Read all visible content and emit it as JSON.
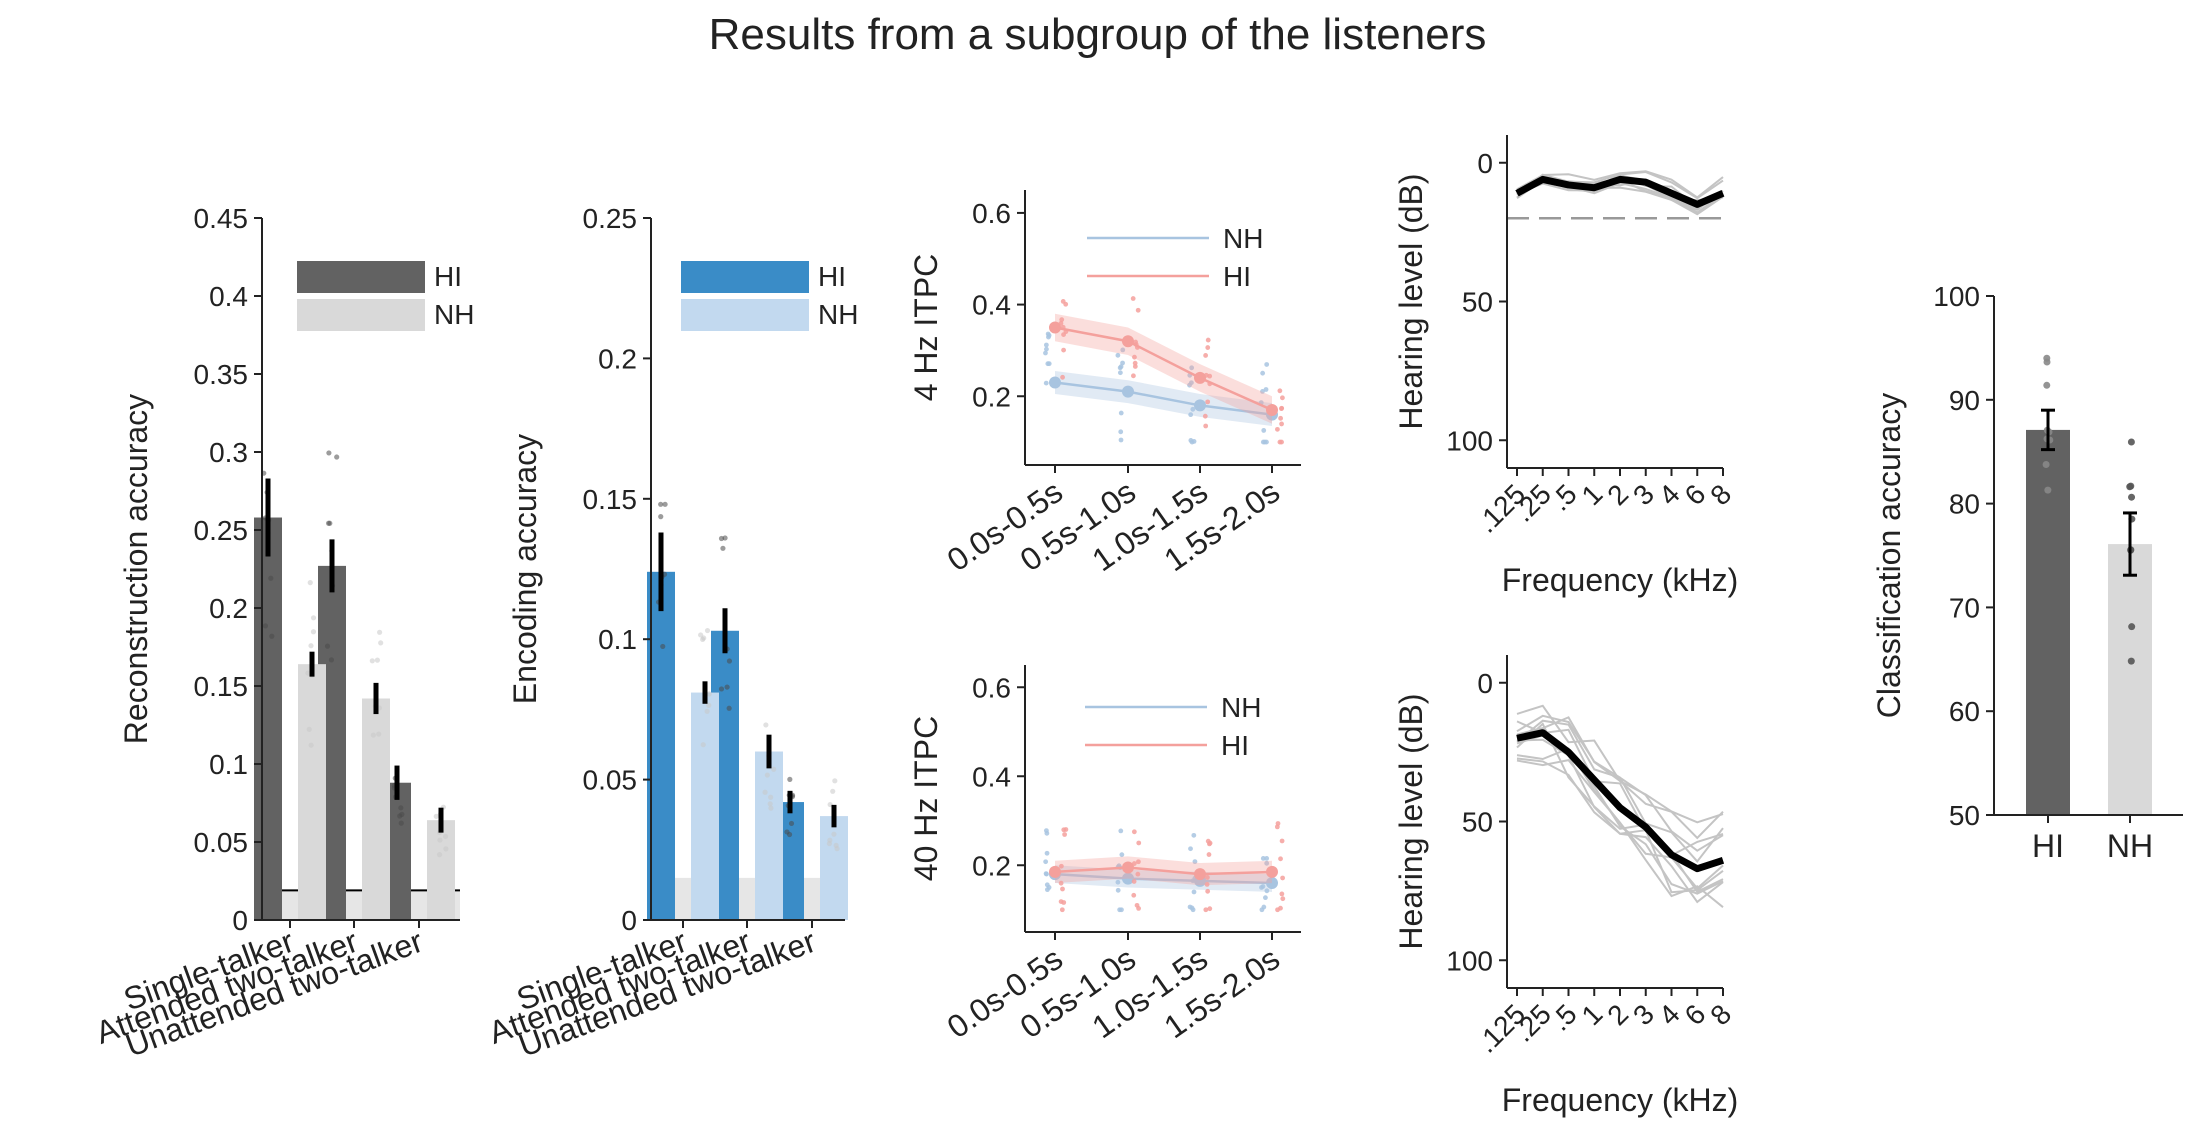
{
  "title": "Results from a subgroup of the listeners",
  "colors": {
    "hi_gray": "#626262",
    "nh_gray": "#d9d9d9",
    "hi_blue": "#3a8cc7",
    "nh_blue": "#c2d9ef",
    "itpc_nh": "#a8c4e0",
    "itpc_hi": "#f4a09c",
    "errorbar": "#000000",
    "chance": "#e6e6e6"
  },
  "chart_data": [
    {
      "type": "bar",
      "categories": [
        "Single-talker",
        "Attended two-talker",
        "Unattended two-talker"
      ],
      "ylabel": "Reconstruction accuracy",
      "ylim": [
        0,
        0.45
      ],
      "yticks": [
        "0",
        "0.05",
        "0.1",
        "0.15",
        "0.2",
        "0.25",
        "0.3",
        "0.35",
        "0.4",
        "0.45"
      ],
      "legend": [
        "HI",
        "NH"
      ],
      "legend_position": "top-right",
      "chance_level": 0.019,
      "series": [
        {
          "name": "HI",
          "values": [
            0.258,
            0.227,
            0.088
          ],
          "err": [
            0.025,
            0.017,
            0.011
          ]
        },
        {
          "name": "NH",
          "values": [
            0.164,
            0.142,
            0.064
          ],
          "err": [
            0.008,
            0.01,
            0.008
          ]
        }
      ]
    },
    {
      "type": "bar",
      "categories": [
        "Single-talker",
        "Attended two-talker",
        "Unattended two-talker"
      ],
      "ylabel": "Encoding accuracy",
      "ylim": [
        0,
        0.25
      ],
      "yticks": [
        "0",
        "0.05",
        "0.1",
        "0.15",
        "0.2",
        "0.25"
      ],
      "legend": [
        "HI",
        "NH"
      ],
      "legend_position": "top-right",
      "chance_level": 0.015,
      "series": [
        {
          "name": "HI",
          "values": [
            0.124,
            0.103,
            0.042
          ],
          "err": [
            0.014,
            0.008,
            0.004
          ]
        },
        {
          "name": "NH",
          "values": [
            0.081,
            0.06,
            0.037
          ],
          "err": [
            0.004,
            0.006,
            0.004
          ]
        }
      ]
    },
    {
      "type": "line",
      "categories": [
        "0.0s-0.5s",
        "0.5s-1.0s",
        "1.0s-1.5s",
        "1.5s-2.0s"
      ],
      "ylabel": "4 Hz ITPC",
      "ylim": [
        0.05,
        0.65
      ],
      "yticks": [
        "0.2",
        "0.4",
        "0.6"
      ],
      "legend": [
        "NH",
        "HI"
      ],
      "legend_position": "top-right",
      "series": [
        {
          "name": "NH",
          "values": [
            0.23,
            0.21,
            0.18,
            0.16
          ],
          "ci": 0.025
        },
        {
          "name": "HI",
          "values": [
            0.35,
            0.32,
            0.24,
            0.17
          ],
          "ci": 0.03
        }
      ]
    },
    {
      "type": "line",
      "categories": [
        "0.0s-0.5s",
        "0.5s-1.0s",
        "1.0s-1.5s",
        "1.5s-2.0s"
      ],
      "ylabel": "40 Hz ITPC",
      "ylim": [
        0.05,
        0.65
      ],
      "yticks": [
        "0.2",
        "0.4",
        "0.6"
      ],
      "legend": [
        "NH",
        "HI"
      ],
      "legend_position": "top-right",
      "series": [
        {
          "name": "NH",
          "values": [
            0.18,
            0.17,
            0.165,
            0.16
          ],
          "ci": 0.02
        },
        {
          "name": "HI",
          "values": [
            0.185,
            0.195,
            0.18,
            0.185
          ],
          "ci": 0.025
        }
      ]
    },
    {
      "type": "line",
      "xlabel": "Frequency (kHz)",
      "ylabel": "Hearing level (dB)",
      "x": [
        0.125,
        0.25,
        0.5,
        1,
        2,
        3,
        4,
        6,
        8
      ],
      "xticks": [
        ".125",
        ".25",
        ".5",
        "1",
        "2",
        "3",
        "4",
        "6",
        "8"
      ],
      "ylim": [
        110,
        -10
      ],
      "yticks": [
        "0",
        "50",
        "100"
      ],
      "reference_level": 20,
      "mean": [
        11,
        6,
        8,
        9,
        6,
        7,
        11,
        15,
        11
      ]
    },
    {
      "type": "line",
      "xlabel": "Frequency (kHz)",
      "ylabel": "Hearing level (dB)",
      "x": [
        0.125,
        0.25,
        0.5,
        1,
        2,
        3,
        4,
        6,
        8
      ],
      "xticks": [
        ".125",
        ".25",
        ".5",
        "1",
        "2",
        "3",
        "4",
        "6",
        "8"
      ],
      "ylim": [
        110,
        -10
      ],
      "yticks": [
        "0",
        "50",
        "100"
      ],
      "mean": [
        20,
        18,
        25,
        35,
        45,
        52,
        62,
        67,
        64
      ]
    },
    {
      "type": "bar",
      "categories": [
        "HI",
        "NH"
      ],
      "ylabel": "Classification accuracy",
      "ylim": [
        50,
        100
      ],
      "yticks": [
        "50",
        "60",
        "70",
        "80",
        "90",
        "100"
      ],
      "values": [
        87.1,
        76.1
      ],
      "err": [
        1.9,
        3.0
      ]
    }
  ]
}
